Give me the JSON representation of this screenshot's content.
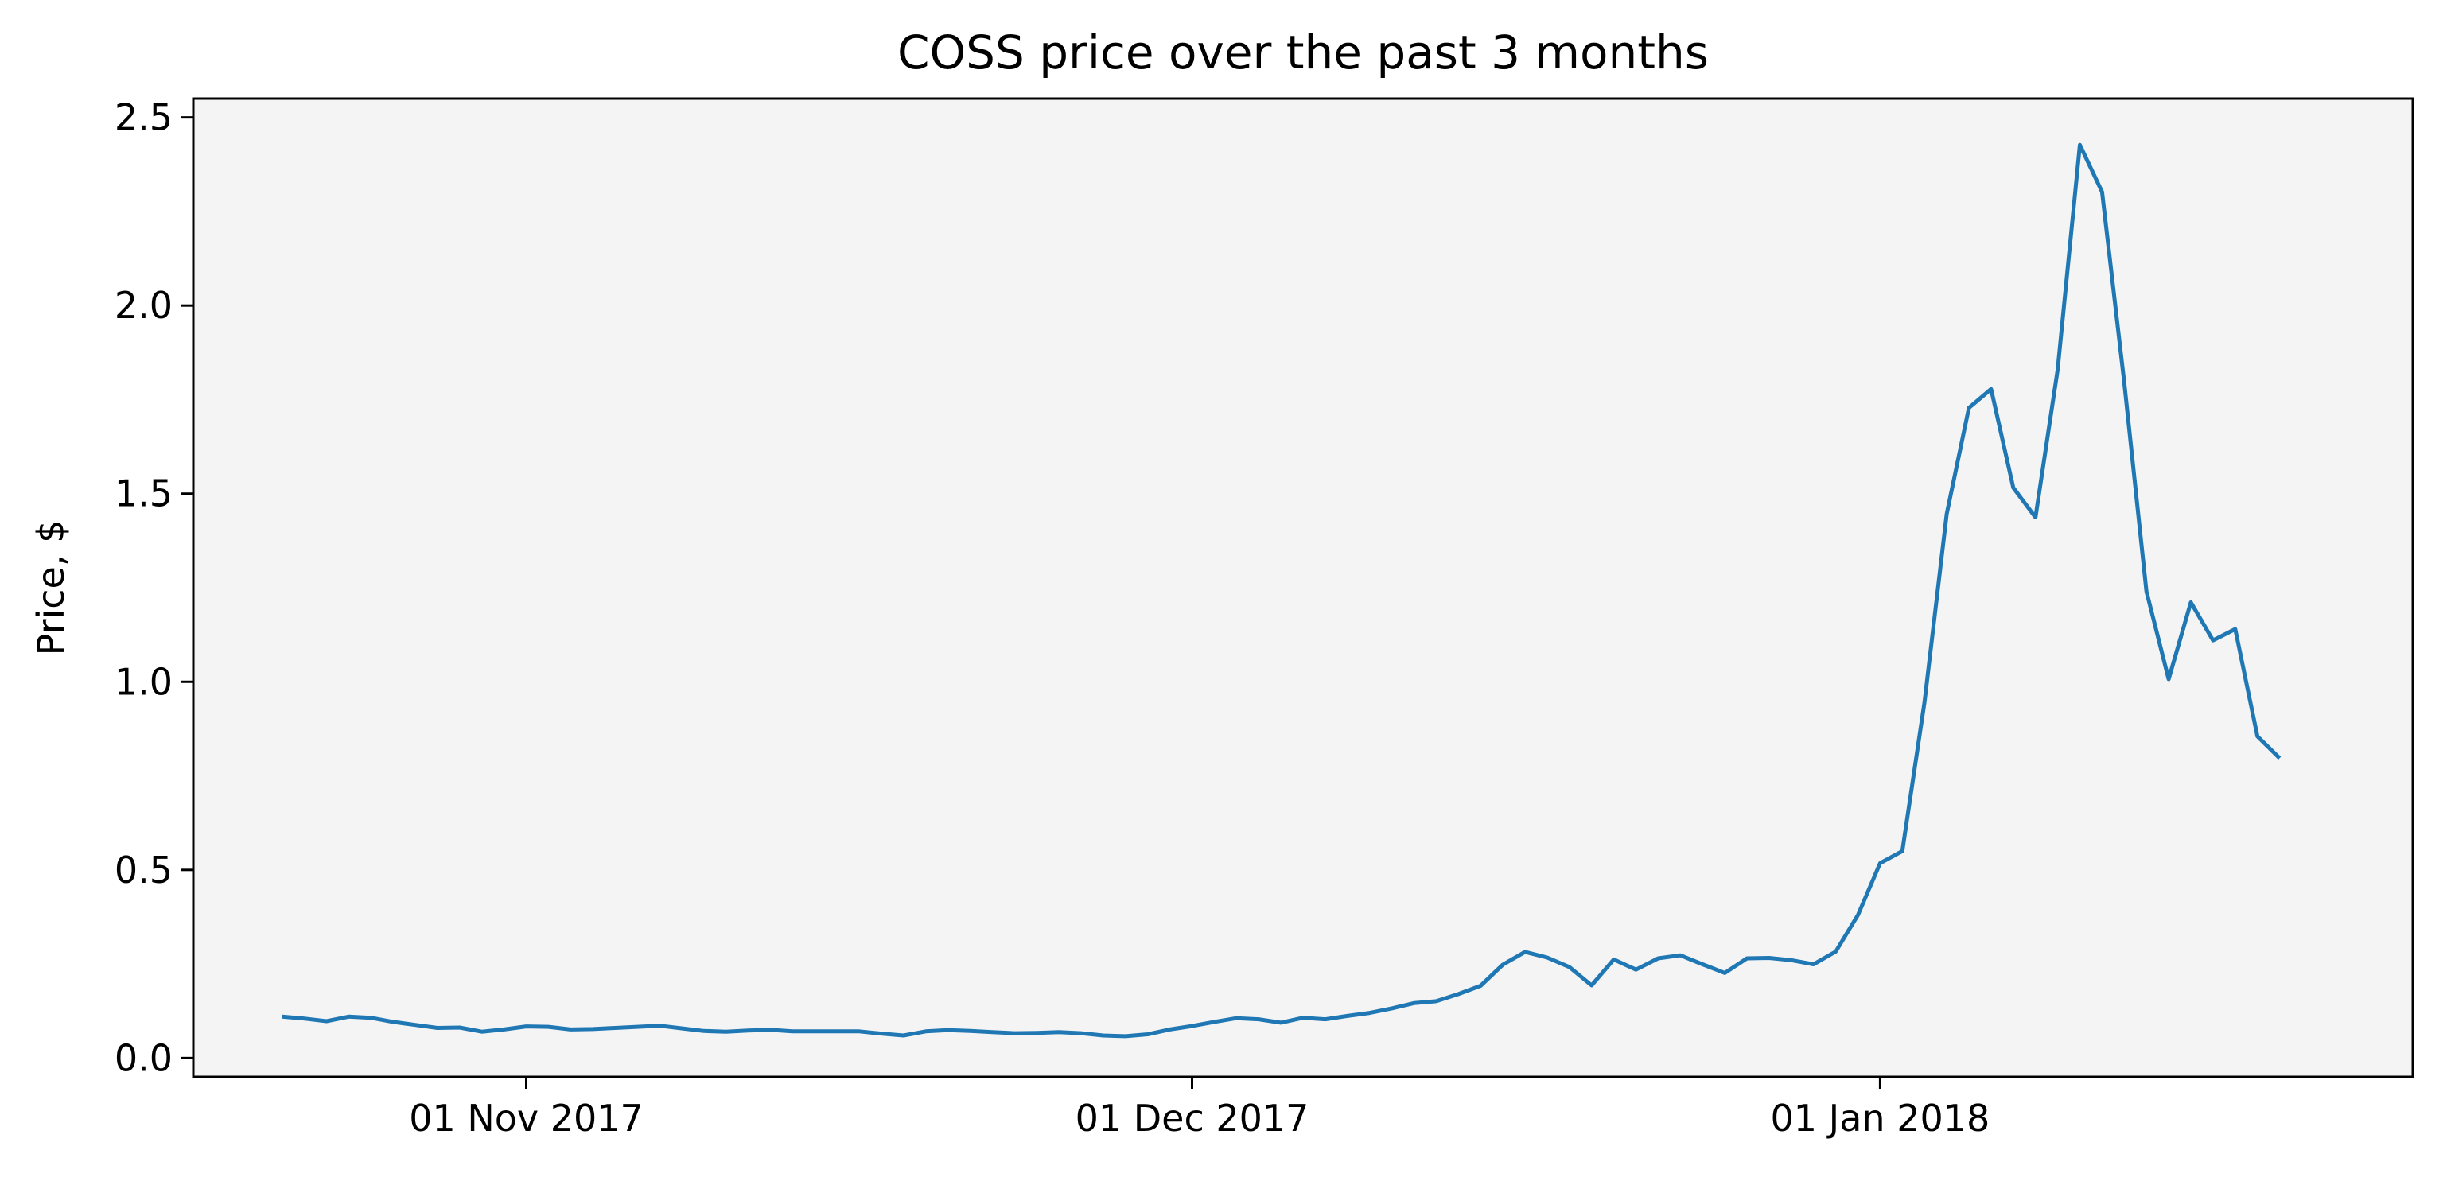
{
  "chart_data": {
    "type": "line",
    "title": "COSS price over the past 3 months",
    "xlabel": "",
    "ylabel": "Price, $",
    "x_start": "2017-10-21",
    "x_step_days": 1,
    "xlim": [
      "2017-10-17",
      "2018-01-25"
    ],
    "ylim": [
      -0.05,
      2.55
    ],
    "xticks": [
      {
        "date": "2017-11-01",
        "label": "01 Nov 2017"
      },
      {
        "date": "2017-12-01",
        "label": "01 Dec 2017"
      },
      {
        "date": "2018-01-01",
        "label": "01 Jan 2018"
      }
    ],
    "yticks": [
      {
        "value": 0.0,
        "label": "0.0"
      },
      {
        "value": 0.5,
        "label": "0.5"
      },
      {
        "value": 1.0,
        "label": "1.0"
      },
      {
        "value": 1.5,
        "label": "1.5"
      },
      {
        "value": 2.0,
        "label": "2.0"
      },
      {
        "value": 2.5,
        "label": "2.5"
      }
    ],
    "grid": false,
    "line_color": "#1f77b4",
    "plot_background": "#f4f4f4",
    "series": [
      {
        "name": "",
        "values": [
          0.11,
          0.105,
          0.098,
          0.11,
          0.107,
          0.096,
          0.088,
          0.08,
          0.081,
          0.07,
          0.076,
          0.084,
          0.083,
          0.076,
          0.077,
          0.08,
          0.083,
          0.086,
          0.079,
          0.072,
          0.07,
          0.073,
          0.075,
          0.071,
          0.071,
          0.071,
          0.071,
          0.065,
          0.06,
          0.071,
          0.074,
          0.072,
          0.069,
          0.066,
          0.067,
          0.069,
          0.066,
          0.06,
          0.058,
          0.063,
          0.076,
          0.085,
          0.096,
          0.106,
          0.103,
          0.094,
          0.107,
          0.103,
          0.112,
          0.12,
          0.132,
          0.146,
          0.151,
          0.17,
          0.192,
          0.248,
          0.282,
          0.267,
          0.242,
          0.193,
          0.262,
          0.235,
          0.265,
          0.273,
          0.249,
          0.226,
          0.265,
          0.266,
          0.26,
          0.249,
          0.283,
          0.38,
          0.518,
          0.55,
          0.946,
          1.446,
          1.728,
          1.778,
          1.516,
          1.437,
          1.83,
          2.427,
          2.302,
          1.795,
          1.24,
          1.007,
          1.211,
          1.11,
          1.14,
          0.855,
          0.797
        ]
      }
    ]
  }
}
